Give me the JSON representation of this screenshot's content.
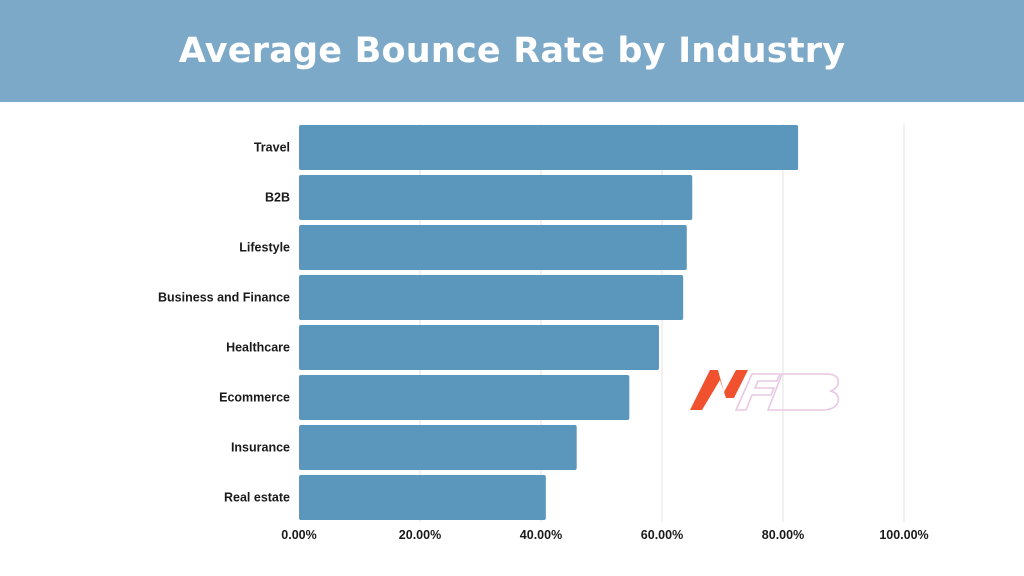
{
  "header": {
    "title": "Average Bounce Rate by Industry"
  },
  "colors": {
    "bar": "#5b97bd",
    "header_bg": "#7da9c9",
    "grid": "#e3e3e3"
  },
  "watermark": {
    "text": "NFB"
  },
  "chart_data": {
    "type": "bar",
    "orientation": "horizontal",
    "title": "Average Bounce Rate by Industry",
    "categories": [
      "Travel",
      "B2B",
      "Lifestyle",
      "Business and Finance",
      "Healthcare",
      "Ecommerce",
      "Insurance",
      "Real estate"
    ],
    "values": [
      82.5,
      65.0,
      64.1,
      63.5,
      59.5,
      54.6,
      45.9,
      40.8
    ],
    "xlim": [
      0,
      100
    ],
    "xticks": [
      "0.00%",
      "20.00%",
      "40.00%",
      "60.00%",
      "80.00%",
      "100.00%"
    ],
    "xlabel": "",
    "ylabel": "",
    "grid": true,
    "legend": "none"
  }
}
